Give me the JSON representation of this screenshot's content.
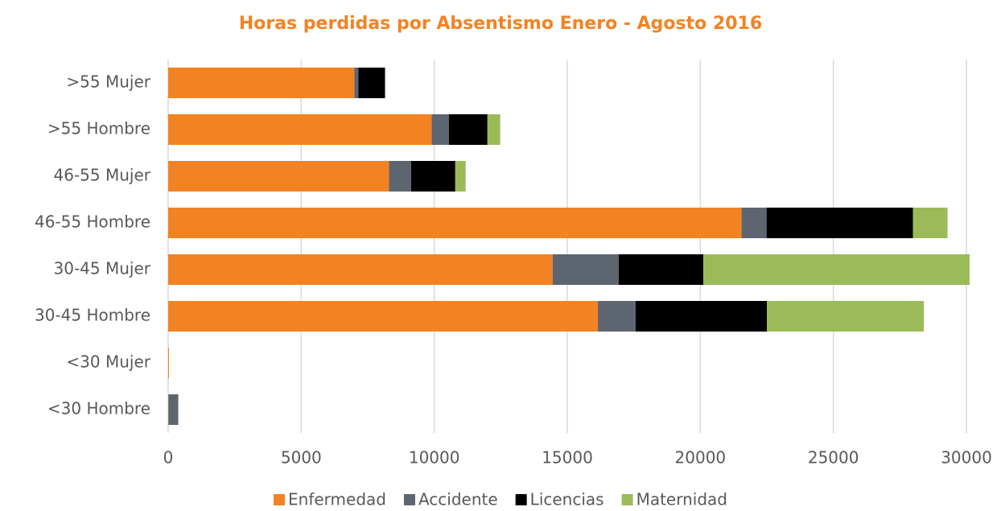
{
  "chart_data": {
    "type": "stacked_hbar",
    "title": "Horas perdidas por Absentismo Enero - Agosto 2016",
    "categories": [
      ">55 Mujer",
      ">55 Hombre",
      "46-55 Mujer",
      "46-55 Hombre",
      "30-45 Mujer",
      "30-45 Hombre",
      "<30 Mujer",
      "<30 Hombre"
    ],
    "series": [
      {
        "name": "Enfermedad",
        "color": "#f28323",
        "values": [
          7000,
          9900,
          8300,
          21550,
          14450,
          16150,
          30,
          10
        ]
      },
      {
        "name": "Accidente",
        "color": "#5d6670",
        "values": [
          150,
          650,
          830,
          940,
          2480,
          1420,
          0,
          370
        ]
      },
      {
        "name": "Licencias",
        "color": "#000000",
        "values": [
          1000,
          1450,
          1660,
          5500,
          3180,
          4930,
          0,
          0
        ]
      },
      {
        "name": "Maternidad",
        "color": "#9bbb59",
        "values": [
          0,
          480,
          390,
          1300,
          10010,
          5900,
          0,
          0
        ]
      }
    ],
    "xlim": [
      0,
      30000
    ],
    "xticks": [
      0,
      5000,
      10000,
      15000,
      20000,
      25000,
      30000
    ],
    "grid": true,
    "legend": "bottom"
  }
}
